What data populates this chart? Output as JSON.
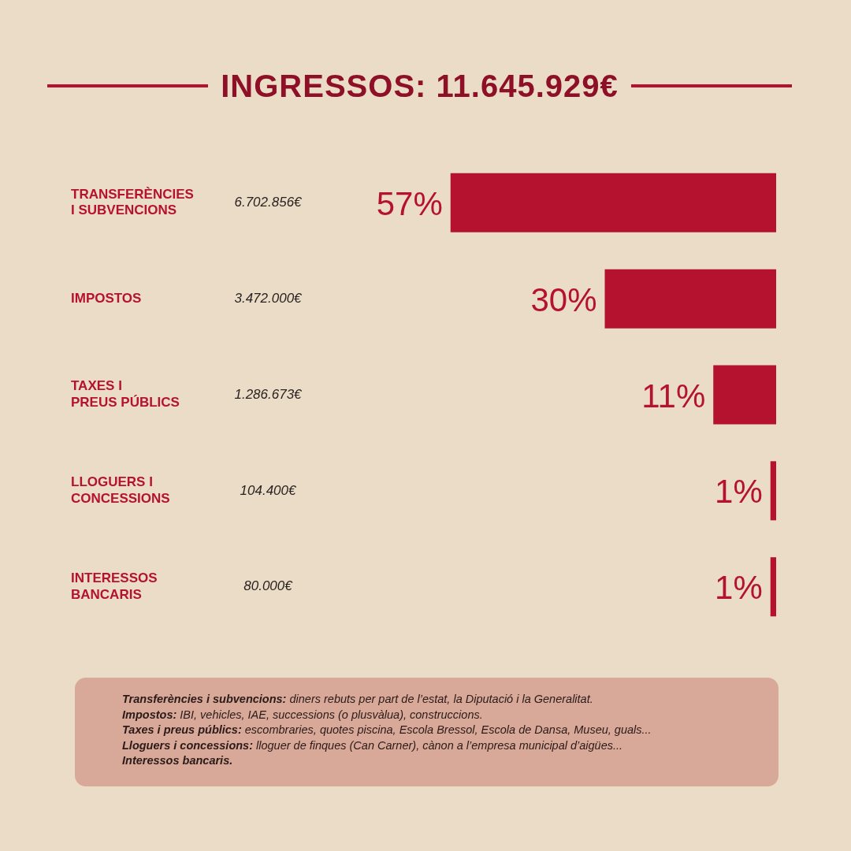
{
  "chart_data": {
    "type": "bar",
    "orientation": "horizontal",
    "title": "INGRESSOS: 11.645.929€",
    "categories": [
      "TRANSFERÈNCIES\nI SUBVENCIONS",
      "IMPOSTOS",
      "TAXES I\nPREUS PÚBLICS",
      "LLOGUERS I\nCONCESSIONS",
      "INTERESSOS\nBANCARIS"
    ],
    "values": [
      57,
      30,
      11,
      1,
      1
    ],
    "value_labels": [
      "57%",
      "30%",
      "11%",
      "1%",
      "1%"
    ],
    "color": "#b5122f",
    "tick_labels": "y",
    "grid": false,
    "legend": false,
    "annotations": [
      "6.702.856€",
      "3.472.000€",
      "1.286.673€",
      "104.400€",
      "80.000€",
      "Transferències i subvencions: diners rebuts per part de l’estat, la Diputació i la Generalitat.",
      "Impostos: IBI, vehicles, IAE, successions (o plusvàlua), construccions.",
      "Taxes i preus públics: escombraries, quotes piscina, Escola Bressol, Escola de Dansa, Museu, guals...",
      "Lloguers i concessions: lloguer de finques (Can Carner), cànon a l’empresa municipal d’aigües...",
      "Interessos bancaris."
    ]
  }
}
